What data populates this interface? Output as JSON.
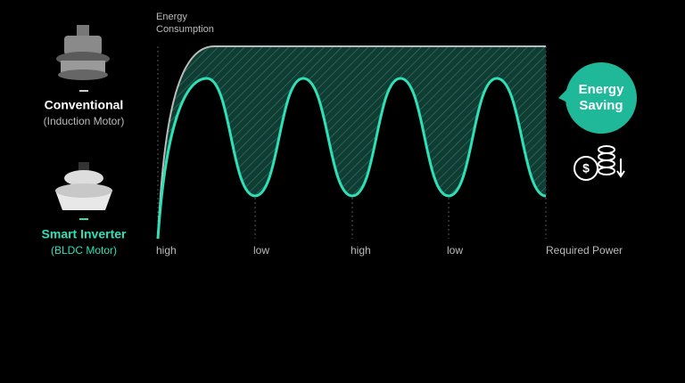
{
  "axis": {
    "y_label_lines": [
      "Energy",
      "Consumption"
    ],
    "x_labels": [
      "high",
      "low",
      "high",
      "low"
    ],
    "x_end_label": "Required Power"
  },
  "motors": [
    {
      "name": "Conventional",
      "type": "(Induction Motor)"
    },
    {
      "name": "Smart Inverter",
      "type": "(BLDC Motor)"
    }
  ],
  "badge": {
    "lines": [
      "Energy",
      "Saving"
    ]
  },
  "icon_label": "$"
}
